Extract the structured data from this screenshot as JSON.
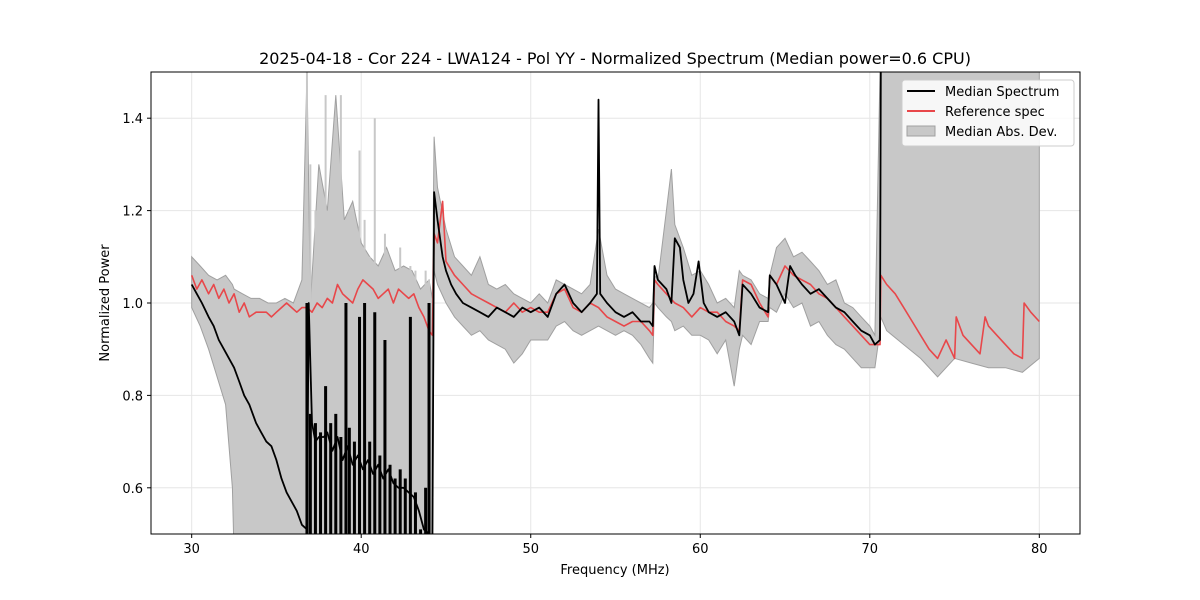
{
  "chart_data": {
    "type": "line",
    "title": "2025-04-18 - Cor 224 - LWA124 - Pol YY - Normalized Spectrum (Median power=0.6 CPU)",
    "xlabel": "Frequency (MHz)",
    "ylabel": "Normalized Power",
    "xlim": [
      27.6,
      82.4
    ],
    "ylim": [
      0.5,
      1.5
    ],
    "xticks": [
      30,
      40,
      50,
      60,
      70,
      80
    ],
    "yticks": [
      0.6,
      0.8,
      1.0,
      1.2,
      1.4
    ],
    "xtick_labels": [
      "30",
      "40",
      "50",
      "60",
      "70",
      "80"
    ],
    "ytick_labels": [
      "0.6",
      "0.8",
      "1.0",
      "1.2",
      "1.4"
    ],
    "grid": true,
    "legend_position": "top-right",
    "legend": [
      "Median Spectrum",
      "Reference spec",
      "Median Abs. Dev."
    ],
    "colors": {
      "median": "#000000",
      "reference": "#e8474a",
      "mad_fill": "#c8c8c8",
      "mad_edge": "#a0a0a0"
    },
    "series": [
      {
        "name": "Median Spectrum",
        "x": [
          30.0,
          30.3,
          30.6,
          31.0,
          31.3,
          31.6,
          31.9,
          32.2,
          32.5,
          32.8,
          33.1,
          33.4,
          33.8,
          34.1,
          34.4,
          34.7,
          35.0,
          35.3,
          35.6,
          35.9,
          36.2,
          36.5,
          36.8,
          36.9,
          37.1,
          37.3,
          37.5,
          37.8,
          38.0,
          38.3,
          38.6,
          38.9,
          39.2,
          39.5,
          39.8,
          40.1,
          40.4,
          40.7,
          41.0,
          41.3,
          41.6,
          41.9,
          42.2,
          42.5,
          42.8,
          43.1,
          43.4,
          43.7,
          44.0,
          44.2,
          44.3,
          44.5,
          44.8,
          45.0,
          45.3,
          45.6,
          46.0,
          46.5,
          47.0,
          47.5,
          48.0,
          48.5,
          49.0,
          49.5,
          50.0,
          50.5,
          51.0,
          51.5,
          52.0,
          52.5,
          53.0,
          53.5,
          53.9,
          54.0,
          54.1,
          54.5,
          55.0,
          55.5,
          56.0,
          56.5,
          57.0,
          57.2,
          57.3,
          57.5,
          58.0,
          58.3,
          58.5,
          58.8,
          59.0,
          59.3,
          59.6,
          59.9,
          60.2,
          60.5,
          61.0,
          61.5,
          62.0,
          62.3,
          62.5,
          63.0,
          63.5,
          64.0,
          64.1,
          64.5,
          65.0,
          65.3,
          65.6,
          66.0,
          66.5,
          67.0,
          67.5,
          68.0,
          68.5,
          69.0,
          69.5,
          70.0,
          70.3,
          70.6,
          70.65
        ],
        "values": [
          1.04,
          1.02,
          1.0,
          0.97,
          0.95,
          0.92,
          0.9,
          0.88,
          0.86,
          0.83,
          0.8,
          0.78,
          0.74,
          0.72,
          0.7,
          0.69,
          0.66,
          0.62,
          0.59,
          0.57,
          0.55,
          0.52,
          0.51,
          1.0,
          0.74,
          0.7,
          0.71,
          0.71,
          0.72,
          0.68,
          0.71,
          0.66,
          0.69,
          0.65,
          0.67,
          0.64,
          0.66,
          0.63,
          0.65,
          0.62,
          0.64,
          0.61,
          0.6,
          0.6,
          0.59,
          0.58,
          0.55,
          0.51,
          0.5,
          0.48,
          1.24,
          1.18,
          1.1,
          1.07,
          1.04,
          1.02,
          1.0,
          0.99,
          0.98,
          0.97,
          0.99,
          0.98,
          0.97,
          0.99,
          0.98,
          0.99,
          0.97,
          1.02,
          1.04,
          1.0,
          0.98,
          1.0,
          1.02,
          1.44,
          1.02,
          1.0,
          0.98,
          0.97,
          0.98,
          0.96,
          0.96,
          0.95,
          1.08,
          1.05,
          1.03,
          1.0,
          1.14,
          1.12,
          1.05,
          1.0,
          1.02,
          1.09,
          1.0,
          0.98,
          0.97,
          0.98,
          0.96,
          0.93,
          1.04,
          1.02,
          0.99,
          0.98,
          1.06,
          1.04,
          1.0,
          1.08,
          1.06,
          1.04,
          1.02,
          1.03,
          1.01,
          0.99,
          0.98,
          0.96,
          0.94,
          0.93,
          0.91,
          0.92,
          1.5
        ]
      },
      {
        "name": "Reference spec",
        "x": [
          30.0,
          30.3,
          30.6,
          31.0,
          31.3,
          31.6,
          31.9,
          32.2,
          32.5,
          32.8,
          33.1,
          33.4,
          33.8,
          34.1,
          34.4,
          34.7,
          35.0,
          35.3,
          35.6,
          35.9,
          36.2,
          36.5,
          36.8,
          37.1,
          37.4,
          37.7,
          38.0,
          38.3,
          38.6,
          38.9,
          39.2,
          39.5,
          39.8,
          40.1,
          40.4,
          40.7,
          41.0,
          41.3,
          41.6,
          41.9,
          42.2,
          42.5,
          42.8,
          43.1,
          43.4,
          43.7,
          44.0,
          44.2,
          44.3,
          44.5,
          44.8,
          45.0,
          45.5,
          46.0,
          46.5,
          47.0,
          47.5,
          48.0,
          48.5,
          49.0,
          49.5,
          50.0,
          50.5,
          51.0,
          51.5,
          52.0,
          52.5,
          53.0,
          53.5,
          54.0,
          54.5,
          55.0,
          55.5,
          56.0,
          56.5,
          57.0,
          57.2,
          57.3,
          57.5,
          58.0,
          58.5,
          59.0,
          59.5,
          60.0,
          60.5,
          61.0,
          61.5,
          62.0,
          62.3,
          62.5,
          63.0,
          63.5,
          64.0,
          64.1,
          64.5,
          65.0,
          65.5,
          66.0,
          66.5,
          67.0,
          67.5,
          68.0,
          68.5,
          69.0,
          69.5,
          70.0,
          70.6,
          70.65,
          71.0,
          71.5,
          72.0,
          72.5,
          73.0,
          73.5,
          74.0,
          74.5,
          75.0,
          75.1,
          75.5,
          76.0,
          76.5,
          76.8,
          77.0,
          77.5,
          78.0,
          78.5,
          79.0,
          79.1,
          79.5,
          80.0
        ],
        "values": [
          1.06,
          1.03,
          1.05,
          1.02,
          1.04,
          1.01,
          1.03,
          1.0,
          1.02,
          0.98,
          1.0,
          0.97,
          0.98,
          0.98,
          0.98,
          0.97,
          0.98,
          0.99,
          1.0,
          0.99,
          0.98,
          0.99,
          0.99,
          0.98,
          1.0,
          0.99,
          1.01,
          1.0,
          1.04,
          1.02,
          1.01,
          1.0,
          1.03,
          1.05,
          1.04,
          1.03,
          1.01,
          1.02,
          1.03,
          1.0,
          1.03,
          1.02,
          1.01,
          1.02,
          0.99,
          0.97,
          0.94,
          0.93,
          1.15,
          1.13,
          1.22,
          1.09,
          1.06,
          1.04,
          1.02,
          1.01,
          1.0,
          0.99,
          0.98,
          1.0,
          0.98,
          0.99,
          0.98,
          0.98,
          1.02,
          1.03,
          0.99,
          0.98,
          1.0,
          0.99,
          0.97,
          0.96,
          0.95,
          0.96,
          0.96,
          0.94,
          0.93,
          1.05,
          1.04,
          1.02,
          1.0,
          0.99,
          0.97,
          0.99,
          0.98,
          0.98,
          0.96,
          0.95,
          0.94,
          1.05,
          1.04,
          1.0,
          0.97,
          1.06,
          1.04,
          1.08,
          1.06,
          1.05,
          1.04,
          1.02,
          1.01,
          0.99,
          0.97,
          0.95,
          0.93,
          0.91,
          0.91,
          1.06,
          1.04,
          1.02,
          0.99,
          0.96,
          0.93,
          0.9,
          0.88,
          0.92,
          0.88,
          0.97,
          0.93,
          0.91,
          0.89,
          0.97,
          0.95,
          0.93,
          0.91,
          0.89,
          0.88,
          1.0,
          0.98,
          0.96
        ]
      },
      {
        "name": "Median Abs. Dev.",
        "x": [
          30.0,
          30.5,
          31.0,
          31.5,
          32.0,
          32.4,
          32.5,
          33.0,
          33.5,
          34.0,
          34.5,
          35.0,
          35.5,
          36.0,
          36.5,
          36.8,
          37.0,
          37.5,
          38.0,
          38.5,
          39.0,
          39.5,
          40.0,
          40.5,
          41.0,
          41.5,
          42.0,
          42.5,
          43.0,
          43.5,
          44.0,
          44.2,
          44.3,
          44.5,
          45.0,
          45.5,
          46.0,
          46.5,
          47.0,
          47.5,
          48.0,
          48.5,
          49.0,
          49.5,
          50.0,
          50.5,
          51.0,
          51.5,
          52.0,
          52.5,
          53.0,
          53.5,
          54.0,
          54.5,
          55.0,
          55.5,
          56.0,
          56.5,
          57.0,
          57.2,
          57.3,
          57.5,
          58.0,
          58.3,
          58.5,
          59.0,
          59.5,
          60.0,
          60.5,
          61.0,
          61.5,
          62.0,
          62.3,
          62.5,
          63.0,
          63.5,
          64.0,
          64.1,
          64.5,
          65.0,
          65.5,
          66.0,
          66.5,
          67.0,
          67.5,
          68.0,
          68.5,
          69.0,
          69.5,
          70.0,
          70.3,
          70.6,
          70.65,
          71.0,
          72.0,
          73.0,
          74.0,
          75.0,
          76.0,
          77.0,
          78.0,
          79.0,
          80.0
        ],
        "upper": [
          1.1,
          1.08,
          1.06,
          1.05,
          1.06,
          1.04,
          1.03,
          1.02,
          1.01,
          1.01,
          1.0,
          1.0,
          1.01,
          1.0,
          1.05,
          1.5,
          1.0,
          1.3,
          1.2,
          1.45,
          1.18,
          1.22,
          1.13,
          1.1,
          1.08,
          1.12,
          1.07,
          1.08,
          1.07,
          1.03,
          1.05,
          1.01,
          1.36,
          1.25,
          1.16,
          1.1,
          1.08,
          1.06,
          1.1,
          1.04,
          1.03,
          1.04,
          1.02,
          1.01,
          1.0,
          1.02,
          1.0,
          1.05,
          1.04,
          1.03,
          1.02,
          1.04,
          1.16,
          1.06,
          1.03,
          1.02,
          1.01,
          1.0,
          0.99,
          1.0,
          1.06,
          1.05,
          1.2,
          1.29,
          1.17,
          1.12,
          1.06,
          1.07,
          1.04,
          1.0,
          1.01,
          0.99,
          1.07,
          1.06,
          1.05,
          1.02,
          1.01,
          1.06,
          1.12,
          1.14,
          1.1,
          1.11,
          1.09,
          1.07,
          1.04,
          1.05,
          1.0,
          0.99,
          0.97,
          0.95,
          0.93,
          1.5,
          1.5,
          1.5,
          1.5,
          1.5,
          1.5,
          1.5,
          1.5,
          1.5,
          1.5,
          1.5,
          1.5
        ],
        "lower": [
          0.99,
          0.95,
          0.9,
          0.84,
          0.78,
          0.6,
          0.45,
          0.4,
          0.4,
          0.4,
          0.4,
          0.4,
          0.4,
          0.4,
          0.4,
          0.4,
          0.4,
          0.4,
          0.4,
          0.4,
          0.4,
          0.4,
          0.4,
          0.4,
          0.4,
          0.4,
          0.4,
          0.4,
          0.4,
          0.4,
          0.4,
          0.4,
          1.07,
          1.04,
          1.0,
          0.97,
          0.95,
          0.93,
          0.94,
          0.92,
          0.91,
          0.9,
          0.87,
          0.89,
          0.92,
          0.92,
          0.92,
          0.95,
          0.96,
          0.94,
          0.93,
          0.94,
          0.95,
          0.94,
          0.93,
          0.94,
          0.93,
          0.91,
          0.88,
          0.87,
          1.0,
          0.99,
          0.97,
          0.96,
          0.94,
          0.95,
          0.93,
          0.93,
          0.92,
          0.89,
          0.92,
          0.82,
          0.9,
          0.93,
          0.91,
          0.96,
          0.96,
          0.99,
          0.98,
          1.02,
          0.99,
          1.0,
          0.95,
          0.96,
          0.93,
          0.91,
          0.9,
          0.88,
          0.86,
          0.86,
          0.86,
          0.94,
          0.97,
          0.94,
          0.91,
          0.88,
          0.84,
          0.88,
          0.87,
          0.86,
          0.86,
          0.85,
          0.88
        ]
      }
    ],
    "rfi_spikes": {
      "x": [
        36.8,
        37.0,
        37.3,
        37.6,
        37.9,
        38.2,
        38.5,
        38.8,
        39.1,
        39.3,
        39.6,
        39.9,
        40.2,
        40.5,
        40.8,
        41.1,
        41.4,
        41.7,
        42.0,
        42.3,
        42.6,
        42.9,
        43.2,
        43.5,
        43.8,
        44.0
      ],
      "top": [
        1.0,
        0.76,
        0.74,
        0.72,
        0.82,
        0.74,
        0.76,
        0.71,
        1.0,
        0.73,
        0.7,
        0.97,
        1.0,
        0.7,
        0.98,
        0.67,
        0.92,
        0.65,
        0.62,
        0.64,
        0.62,
        0.97,
        0.59,
        0.51,
        0.6,
        1.0
      ],
      "bottom": 0.4,
      "mad_top": [
        1.5,
        1.3,
        1.2,
        1.25,
        1.45,
        1.18,
        1.22,
        1.45,
        1.1,
        1.2,
        1.08,
        1.33,
        1.18,
        1.1,
        1.4,
        1.05,
        1.15,
        1.0,
        1.05,
        1.12,
        0.98,
        1.08,
        1.07,
        0.97,
        1.07,
        1.05
      ]
    }
  }
}
